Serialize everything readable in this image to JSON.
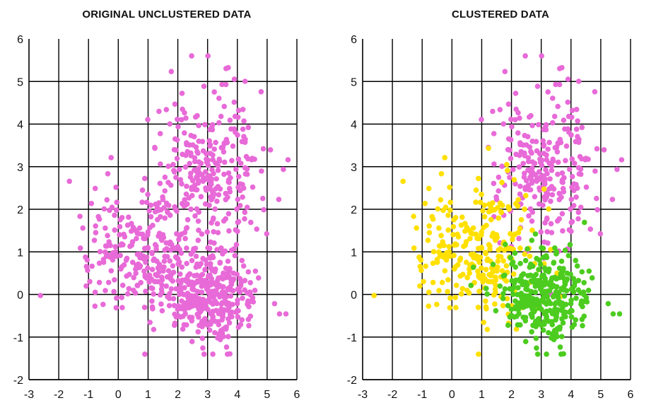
{
  "chart_data": [
    {
      "type": "scatter",
      "title": "ORIGINAL UNCLUSTERED DATA",
      "xlabel": "",
      "ylabel": "",
      "xlim": [
        -3,
        6
      ],
      "ylim": [
        -2,
        6
      ],
      "xticks": [
        "-3",
        "-2",
        "-1",
        "0",
        "1",
        "2",
        "3",
        "4",
        "5",
        "6"
      ],
      "yticks": [
        "-2",
        "-1",
        "0",
        "1",
        "2",
        "3",
        "4",
        "5",
        "6"
      ],
      "grid": true,
      "seed": 7,
      "clusters": [
        {
          "color": "#e86ad8",
          "center": [
            3.2,
            3.0
          ],
          "spread": [
            0.85,
            0.95
          ],
          "count": 260
        },
        {
          "color": "#e86ad8",
          "center": [
            0.8,
            1.1
          ],
          "spread": [
            0.95,
            0.85
          ],
          "count": 270
        },
        {
          "color": "#e86ad8",
          "center": [
            3.1,
            0.0
          ],
          "spread": [
            0.75,
            0.5
          ],
          "count": 330
        }
      ]
    },
    {
      "type": "scatter",
      "title": "CLUSTERED DATA",
      "xlabel": "",
      "ylabel": "",
      "xlim": [
        -3,
        6
      ],
      "ylim": [
        -2,
        6
      ],
      "xticks": [
        "-3",
        "-2",
        "-1",
        "0",
        "1",
        "2",
        "3",
        "4",
        "5",
        "6"
      ],
      "yticks": [
        "-2",
        "-1",
        "0",
        "1",
        "2",
        "3",
        "4",
        "5",
        "6"
      ],
      "grid": true,
      "seed": 7,
      "clusters": [
        {
          "color": "#e86ad8",
          "center": [
            3.2,
            3.0
          ],
          "spread": [
            0.85,
            0.95
          ],
          "count": 260
        },
        {
          "color": "#ffe000",
          "center": [
            0.8,
            1.1
          ],
          "spread": [
            0.95,
            0.85
          ],
          "count": 270
        },
        {
          "color": "#4ccc1f",
          "center": [
            3.1,
            0.0
          ],
          "spread": [
            0.75,
            0.5
          ],
          "count": 330
        }
      ]
    }
  ]
}
